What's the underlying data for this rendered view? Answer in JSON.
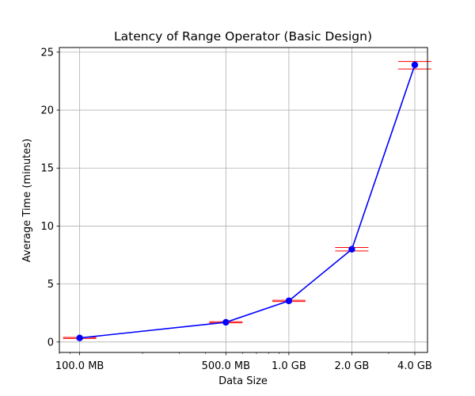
{
  "chart_data": {
    "type": "line",
    "title": "Latency of Range Operator (Basic Design)",
    "xlabel": "Data Size",
    "ylabel": "Average Time (minutes)",
    "x_scale": "log",
    "x_range_mb": [
      80,
      4600
    ],
    "ylim": [
      -0.9,
      25.4
    ],
    "grid": true,
    "x_tick_values_mb": [
      100,
      500,
      1000,
      2000,
      4000
    ],
    "x_tick_labels": [
      "100.0 MB",
      "500.0 MB",
      "1.0 GB",
      "2.0 GB",
      "4.0 GB"
    ],
    "y_ticks": [
      0,
      5,
      10,
      15,
      20,
      25
    ],
    "series": [
      {
        "line_color": "#0000ff",
        "marker_color": "#0000ff",
        "error_color": "#ff0000",
        "x_mb": [
          100,
          500,
          1000,
          2000,
          4000
        ],
        "y": [
          0.35,
          1.7,
          3.55,
          8.0,
          23.9
        ],
        "y_low": [
          0.3,
          1.65,
          3.5,
          7.85,
          23.55
        ],
        "y_high": [
          0.4,
          1.75,
          3.6,
          8.15,
          24.2
        ]
      }
    ]
  }
}
